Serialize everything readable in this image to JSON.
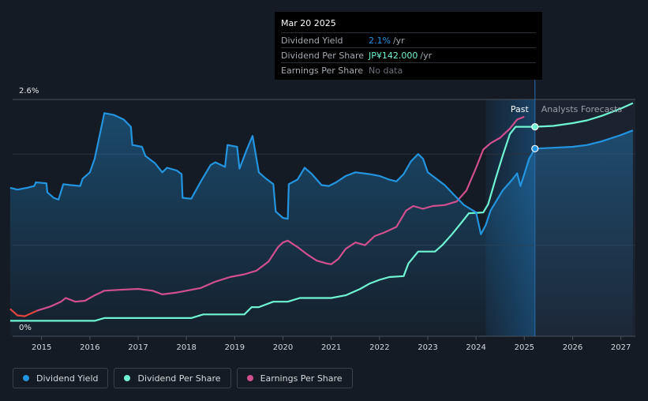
{
  "tooltip": {
    "date": "Mar 20 2025",
    "rows": [
      {
        "name": "Dividend Yield",
        "value": "2.1%",
        "unit": "/yr",
        "color": "#2394df"
      },
      {
        "name": "Dividend Per Share",
        "value": "JP¥142.000",
        "unit": "/yr",
        "color": "#6ff5d3"
      },
      {
        "name": "Earnings Per Share",
        "value": "No data",
        "unit": ""
      }
    ]
  },
  "zones": {
    "past": "Past",
    "forecast": "Analysts Forecasts"
  },
  "legend": [
    {
      "label": "Dividend Yield",
      "color": "#2394df"
    },
    {
      "label": "Dividend Per Share",
      "color": "#6ff5d3"
    },
    {
      "label": "Earnings Per Share",
      "color": "#d14f8e"
    }
  ],
  "chart_data": {
    "type": "line",
    "y_tick_labels": [
      "0%",
      "2.6%"
    ],
    "ylim": [
      0,
      2.6
    ],
    "xlim": [
      2014.4,
      2027.3
    ],
    "x_ticks": [
      2015,
      2016,
      2017,
      2018,
      2019,
      2020,
      2021,
      2022,
      2023,
      2024,
      2025,
      2026,
      2027
    ],
    "past_end": 2025.22,
    "highlight_start": 2024.2,
    "colors": {
      "yield": "#2394df",
      "dps": "#6ff5d3",
      "eps": "#d14f8e",
      "eps_early": "#e0443e"
    },
    "series": [
      {
        "name": "Dividend Yield",
        "key": "yield",
        "unit": "%",
        "points": [
          [
            2014.35,
            1.63
          ],
          [
            2014.5,
            1.61
          ],
          [
            2014.7,
            1.63
          ],
          [
            2014.85,
            1.65
          ],
          [
            2014.88,
            1.69
          ],
          [
            2015.1,
            1.68
          ],
          [
            2015.12,
            1.58
          ],
          [
            2015.25,
            1.52
          ],
          [
            2015.35,
            1.5
          ],
          [
            2015.45,
            1.67
          ],
          [
            2015.6,
            1.66
          ],
          [
            2015.8,
            1.65
          ],
          [
            2015.85,
            1.73
          ],
          [
            2016.0,
            1.8
          ],
          [
            2016.1,
            1.95
          ],
          [
            2016.2,
            2.2
          ],
          [
            2016.3,
            2.45
          ],
          [
            2016.5,
            2.43
          ],
          [
            2016.7,
            2.38
          ],
          [
            2016.85,
            2.3
          ],
          [
            2016.88,
            2.1
          ],
          [
            2017.08,
            2.08
          ],
          [
            2017.15,
            1.98
          ],
          [
            2017.35,
            1.9
          ],
          [
            2017.5,
            1.8
          ],
          [
            2017.6,
            1.85
          ],
          [
            2017.8,
            1.82
          ],
          [
            2017.9,
            1.78
          ],
          [
            2017.92,
            1.52
          ],
          [
            2018.1,
            1.51
          ],
          [
            2018.3,
            1.7
          ],
          [
            2018.5,
            1.88
          ],
          [
            2018.6,
            1.91
          ],
          [
            2018.8,
            1.86
          ],
          [
            2018.85,
            2.1
          ],
          [
            2019.05,
            2.08
          ],
          [
            2019.1,
            1.84
          ],
          [
            2019.25,
            2.05
          ],
          [
            2019.37,
            2.2
          ],
          [
            2019.5,
            1.8
          ],
          [
            2019.65,
            1.73
          ],
          [
            2019.8,
            1.67
          ],
          [
            2019.85,
            1.37
          ],
          [
            2020.0,
            1.3
          ],
          [
            2020.1,
            1.29
          ],
          [
            2020.12,
            1.67
          ],
          [
            2020.3,
            1.72
          ],
          [
            2020.45,
            1.85
          ],
          [
            2020.6,
            1.78
          ],
          [
            2020.8,
            1.66
          ],
          [
            2020.95,
            1.65
          ],
          [
            2021.1,
            1.69
          ],
          [
            2021.3,
            1.76
          ],
          [
            2021.5,
            1.8
          ],
          [
            2021.8,
            1.78
          ],
          [
            2022.0,
            1.76
          ],
          [
            2022.2,
            1.72
          ],
          [
            2022.35,
            1.7
          ],
          [
            2022.5,
            1.78
          ],
          [
            2022.65,
            1.92
          ],
          [
            2022.8,
            2.0
          ],
          [
            2022.9,
            1.95
          ],
          [
            2023.0,
            1.8
          ],
          [
            2023.15,
            1.74
          ],
          [
            2023.35,
            1.66
          ],
          [
            2023.55,
            1.55
          ],
          [
            2023.75,
            1.44
          ],
          [
            2024.0,
            1.36
          ],
          [
            2024.1,
            1.12
          ],
          [
            2024.2,
            1.22
          ],
          [
            2024.3,
            1.38
          ],
          [
            2024.55,
            1.6
          ],
          [
            2024.75,
            1.72
          ],
          [
            2024.85,
            1.79
          ],
          [
            2024.92,
            1.65
          ],
          [
            2025.0,
            1.78
          ],
          [
            2025.1,
            1.95
          ],
          [
            2025.22,
            2.06
          ],
          [
            2025.6,
            2.07
          ],
          [
            2026.0,
            2.08
          ],
          [
            2026.3,
            2.1
          ],
          [
            2026.6,
            2.14
          ],
          [
            2027.0,
            2.21
          ],
          [
            2027.25,
            2.26
          ]
        ]
      },
      {
        "name": "Dividend Per Share",
        "key": "dps",
        "unit": "JP¥",
        "points": [
          [
            2014.35,
            0.17
          ],
          [
            2015.0,
            0.17
          ],
          [
            2015.5,
            0.17
          ],
          [
            2016.1,
            0.17
          ],
          [
            2016.3,
            0.2
          ],
          [
            2017.0,
            0.2
          ],
          [
            2017.5,
            0.2
          ],
          [
            2018.1,
            0.2
          ],
          [
            2018.35,
            0.24
          ],
          [
            2018.7,
            0.24
          ],
          [
            2019.2,
            0.24
          ],
          [
            2019.35,
            0.32
          ],
          [
            2019.5,
            0.32
          ],
          [
            2019.8,
            0.38
          ],
          [
            2020.1,
            0.38
          ],
          [
            2020.35,
            0.42
          ],
          [
            2020.7,
            0.42
          ],
          [
            2021.0,
            0.42
          ],
          [
            2021.3,
            0.45
          ],
          [
            2021.6,
            0.52
          ],
          [
            2021.8,
            0.58
          ],
          [
            2022.0,
            0.62
          ],
          [
            2022.2,
            0.65
          ],
          [
            2022.5,
            0.66
          ],
          [
            2022.6,
            0.8
          ],
          [
            2022.8,
            0.93
          ],
          [
            2023.15,
            0.93
          ],
          [
            2023.3,
            1.0
          ],
          [
            2023.5,
            1.12
          ],
          [
            2023.7,
            1.25
          ],
          [
            2023.85,
            1.35
          ],
          [
            2024.15,
            1.36
          ],
          [
            2024.25,
            1.45
          ],
          [
            2024.4,
            1.72
          ],
          [
            2024.55,
            1.98
          ],
          [
            2024.7,
            2.22
          ],
          [
            2024.82,
            2.3
          ],
          [
            2025.22,
            2.3
          ],
          [
            2025.6,
            2.31
          ],
          [
            2026.0,
            2.34
          ],
          [
            2026.3,
            2.37
          ],
          [
            2026.6,
            2.42
          ],
          [
            2027.0,
            2.5
          ],
          [
            2027.25,
            2.56
          ]
        ]
      },
      {
        "name": "Earnings Per Share",
        "key": "eps",
        "unit": "JP¥",
        "points": [
          [
            2014.35,
            0.3
          ],
          [
            2014.5,
            0.23
          ],
          [
            2014.65,
            0.22
          ],
          [
            2014.9,
            0.28
          ],
          [
            2015.2,
            0.33
          ],
          [
            2015.4,
            0.38
          ],
          [
            2015.5,
            0.42
          ],
          [
            2015.7,
            0.38
          ],
          [
            2015.9,
            0.39
          ],
          [
            2016.1,
            0.45
          ],
          [
            2016.3,
            0.5
          ],
          [
            2016.6,
            0.51
          ],
          [
            2017.0,
            0.52
          ],
          [
            2017.3,
            0.5
          ],
          [
            2017.5,
            0.46
          ],
          [
            2017.8,
            0.48
          ],
          [
            2018.0,
            0.5
          ],
          [
            2018.3,
            0.53
          ],
          [
            2018.6,
            0.6
          ],
          [
            2018.9,
            0.65
          ],
          [
            2019.2,
            0.68
          ],
          [
            2019.45,
            0.72
          ],
          [
            2019.7,
            0.82
          ],
          [
            2019.9,
            0.98
          ],
          [
            2020.0,
            1.03
          ],
          [
            2020.1,
            1.05
          ],
          [
            2020.3,
            0.98
          ],
          [
            2020.5,
            0.9
          ],
          [
            2020.7,
            0.83
          ],
          [
            2020.9,
            0.8
          ],
          [
            2021.0,
            0.79
          ],
          [
            2021.15,
            0.85
          ],
          [
            2021.3,
            0.96
          ],
          [
            2021.5,
            1.03
          ],
          [
            2021.7,
            1.0
          ],
          [
            2021.9,
            1.1
          ],
          [
            2022.1,
            1.14
          ],
          [
            2022.35,
            1.2
          ],
          [
            2022.55,
            1.38
          ],
          [
            2022.7,
            1.43
          ],
          [
            2022.9,
            1.4
          ],
          [
            2023.1,
            1.43
          ],
          [
            2023.35,
            1.44
          ],
          [
            2023.6,
            1.48
          ],
          [
            2023.8,
            1.6
          ],
          [
            2024.0,
            1.85
          ],
          [
            2024.15,
            2.05
          ],
          [
            2024.3,
            2.12
          ],
          [
            2024.5,
            2.18
          ],
          [
            2024.7,
            2.28
          ],
          [
            2024.85,
            2.38
          ],
          [
            2025.0,
            2.41
          ]
        ]
      }
    ],
    "tooltip_points": [
      {
        "key": "yield",
        "x": 2025.22,
        "y": 2.06
      },
      {
        "key": "dps",
        "x": 2025.22,
        "y": 2.3
      }
    ]
  }
}
